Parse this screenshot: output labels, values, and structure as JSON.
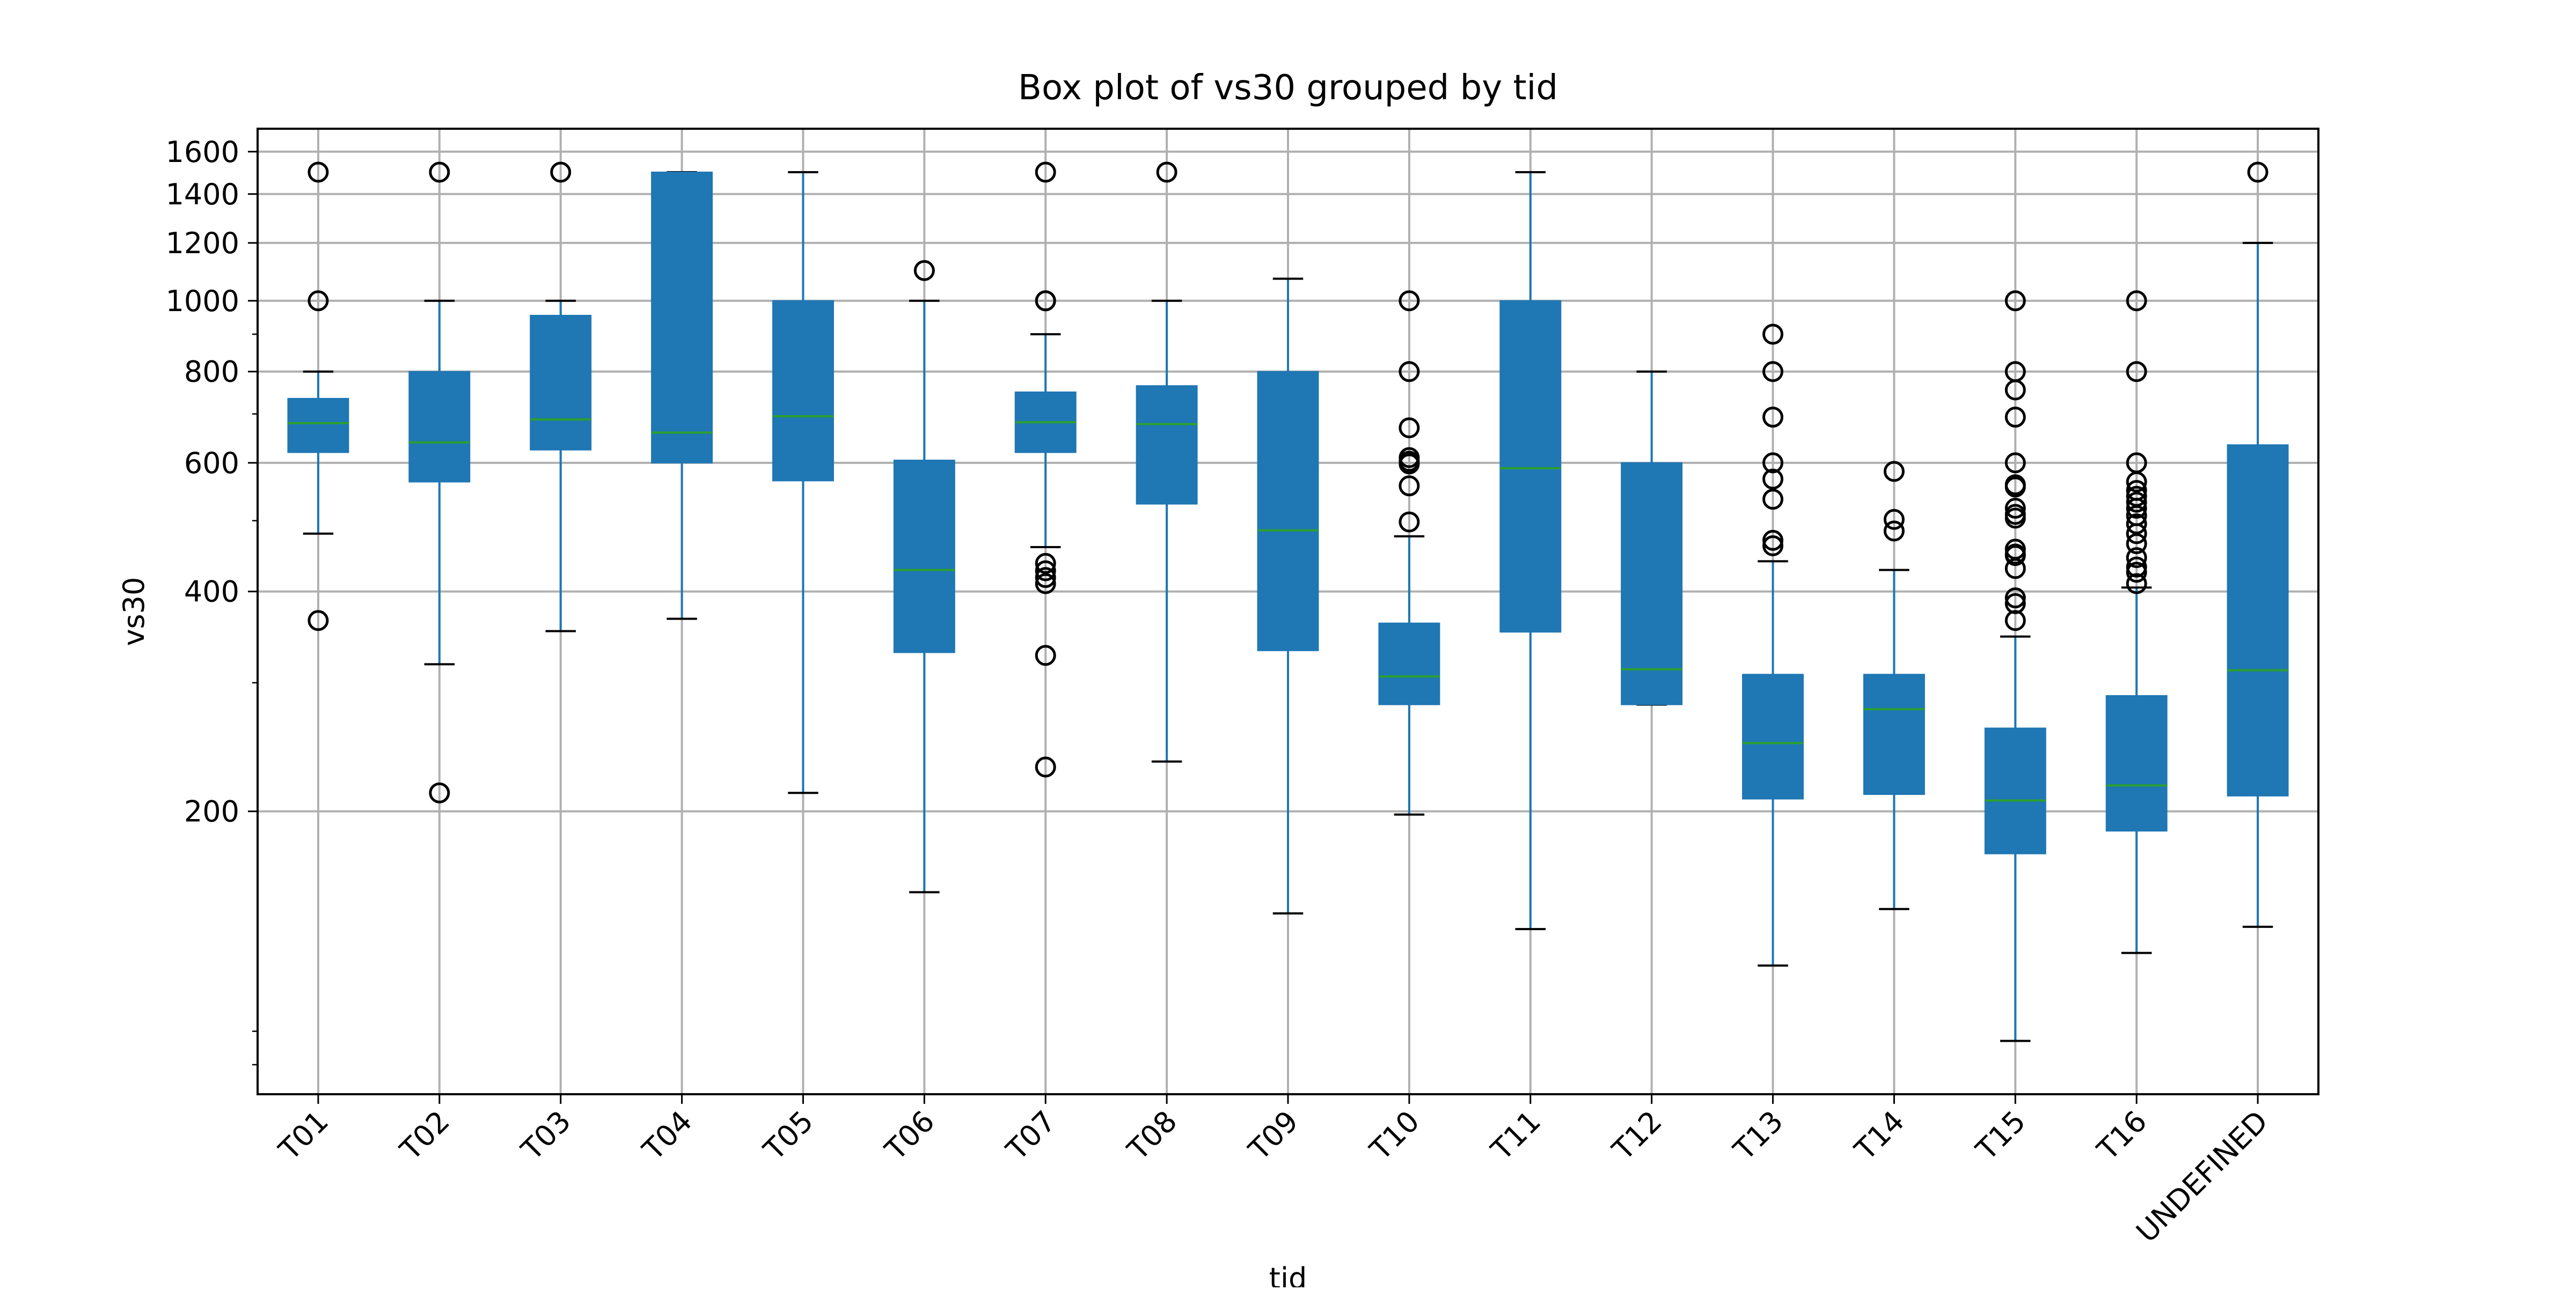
{
  "chart_data": {
    "type": "boxplot",
    "title": "Box plot of vs30 grouped by tid",
    "xlabel": "tid",
    "ylabel": "vs30",
    "yscale": "log",
    "ylim": [
      82,
      1720
    ],
    "yticks": [
      200,
      400,
      600,
      800,
      1000,
      1200,
      1400,
      1600
    ],
    "grid": true,
    "colors": {
      "box": "#1f77b4",
      "median": "#2ca02c",
      "whisker": "#1f77b4",
      "cap": "#000000",
      "flier": "#000000",
      "grid": "#b0b0b0"
    },
    "categories": [
      "T01",
      "T02",
      "T03",
      "T04",
      "T05",
      "T06",
      "T07",
      "T08",
      "T09",
      "T10",
      "T11",
      "T12",
      "T13",
      "T14",
      "T15",
      "T16",
      "UNDEFINED"
    ],
    "boxes": [
      {
        "name": "T01",
        "whislo": 480,
        "q1": 620,
        "med": 680,
        "q3": 735,
        "whishi": 800,
        "fliers": [
          1500,
          1000,
          365
        ]
      },
      {
        "name": "T02",
        "whislo": 318,
        "q1": 565,
        "med": 640,
        "q3": 800,
        "whishi": 1000,
        "fliers": [
          1500,
          212
        ]
      },
      {
        "name": "T03",
        "whislo": 353,
        "q1": 625,
        "med": 688,
        "q3": 955,
        "whishi": 1000,
        "fliers": [
          1500
        ]
      },
      {
        "name": "T04",
        "whislo": 367,
        "q1": 600,
        "med": 660,
        "q3": 1500,
        "whishi": 1500,
        "fliers": []
      },
      {
        "name": "T05",
        "whislo": 212,
        "q1": 567,
        "med": 695,
        "q3": 1000,
        "whishi": 1500,
        "fliers": []
      },
      {
        "name": "T06",
        "whislo": 155,
        "q1": 330,
        "med": 428,
        "q3": 605,
        "whishi": 1000,
        "fliers": [
          1100
        ]
      },
      {
        "name": "T07",
        "whislo": 460,
        "q1": 620,
        "med": 682,
        "q3": 750,
        "whishi": 900,
        "fliers": [
          1500,
          1000,
          1000,
          437,
          427,
          418,
          410,
          327,
          230
        ]
      },
      {
        "name": "T08",
        "whislo": 234,
        "q1": 527,
        "med": 678,
        "q3": 765,
        "whishi": 1000,
        "fliers": [
          1500
        ]
      },
      {
        "name": "T09",
        "whislo": 145,
        "q1": 332,
        "med": 485,
        "q3": 800,
        "whishi": 1072,
        "fliers": []
      },
      {
        "name": "T10",
        "whislo": 198,
        "q1": 280,
        "med": 306,
        "q3": 362,
        "whishi": 476,
        "fliers": [
          1000,
          800,
          670,
          610,
          603,
          598,
          558,
          498
        ]
      },
      {
        "name": "T11",
        "whislo": 138,
        "q1": 352,
        "med": 590,
        "q3": 1000,
        "whishi": 1500,
        "fliers": []
      },
      {
        "name": "T12",
        "whislo": 280,
        "q1": 280,
        "med": 313,
        "q3": 600,
        "whishi": 800,
        "fliers": []
      },
      {
        "name": "T13",
        "whislo": 123,
        "q1": 208,
        "med": 248,
        "q3": 308,
        "whishi": 440,
        "fliers": [
          900,
          800,
          693,
          600,
          570,
          535,
          470,
          462
        ]
      },
      {
        "name": "T14",
        "whislo": 147,
        "q1": 211,
        "med": 276,
        "q3": 308,
        "whishi": 428,
        "fliers": [
          584,
          502,
          484
        ]
      },
      {
        "name": "T15",
        "whislo": 97,
        "q1": 175,
        "med": 207,
        "q3": 260,
        "whishi": 347,
        "fliers": [
          1000,
          800,
          755,
          693,
          600,
          560,
          556,
          520,
          510,
          504,
          457,
          450,
          448,
          430,
          392,
          385,
          365
        ]
      },
      {
        "name": "T16",
        "whislo": 128,
        "q1": 188,
        "med": 217,
        "q3": 288,
        "whishi": 405,
        "fliers": [
          1000,
          800,
          600,
          565,
          550,
          540,
          530,
          520,
          508,
          495,
          480,
          465,
          445,
          432,
          425,
          410
        ]
      },
      {
        "name": "UNDEFINED",
        "whislo": 139,
        "q1": 210,
        "med": 312,
        "q3": 635,
        "whishi": 1200,
        "fliers": [
          1500
        ]
      }
    ]
  }
}
